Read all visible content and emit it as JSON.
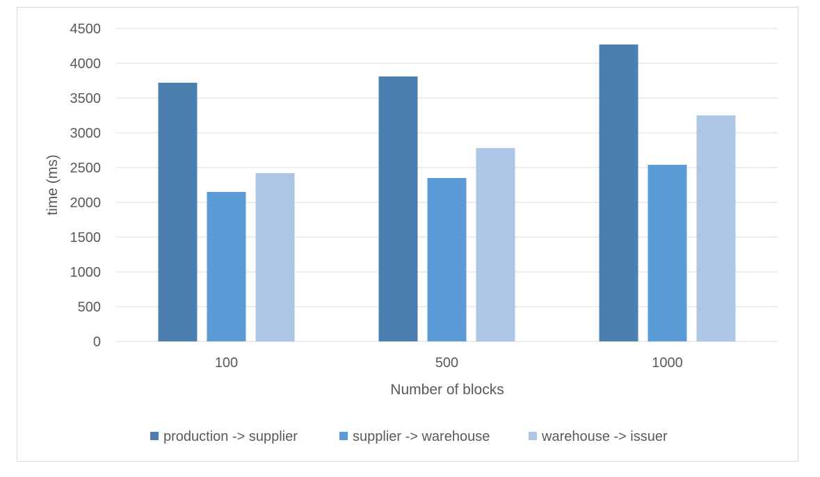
{
  "chart_data": {
    "type": "bar",
    "title": "",
    "xlabel": "Number of blocks",
    "ylabel": "time (ms)",
    "categories": [
      "100",
      "500",
      "1000"
    ],
    "ylim": [
      0,
      4500
    ],
    "yticks": [
      0,
      500,
      1000,
      1500,
      2000,
      2500,
      3000,
      3500,
      4000,
      4500
    ],
    "grid": true,
    "legend_position": "bottom",
    "series": [
      {
        "name": "production -> supplier",
        "color": "#4a7fb0",
        "values": [
          3720,
          3810,
          4270
        ]
      },
      {
        "name": "supplier -> warehouse",
        "color": "#5b9bd5",
        "values": [
          2150,
          2350,
          2540
        ]
      },
      {
        "name": "warehouse -> issuer",
        "color": "#adc6e5",
        "values": [
          2420,
          2780,
          3250
        ]
      }
    ]
  }
}
